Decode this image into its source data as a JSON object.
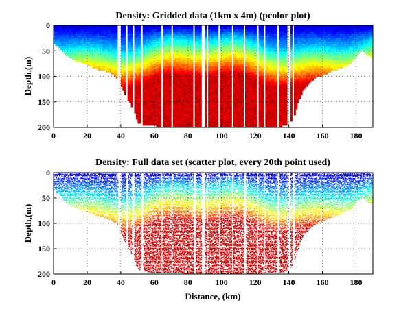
{
  "chart_data": [
    {
      "type": "heatmap",
      "title": "Density: Gridded data (1km x 4m) (pcolor plot)",
      "xlabel": "",
      "ylabel": "Depth,(m)",
      "xlim": [
        0,
        190
      ],
      "ylim": [
        200,
        0
      ],
      "xticks": [
        "0",
        "20",
        "40",
        "60",
        "80",
        "100",
        "120",
        "140",
        "160",
        "180"
      ],
      "yticks": [
        "0",
        "50",
        "100",
        "150",
        "200"
      ],
      "grid": true,
      "colormap": "jet",
      "description_values": {
        "surface_density": "low (blue)",
        "deep_density": "high (dark red)"
      }
    },
    {
      "type": "scatter",
      "title": "Density: Full data set (scatter plot, every 20th point used)",
      "xlabel": "Distance, (km)",
      "ylabel": "Depth,(m)",
      "xlim": [
        0,
        190
      ],
      "ylim": [
        200,
        0
      ],
      "xticks": [
        "0",
        "20",
        "40",
        "60",
        "80",
        "100",
        "120",
        "140",
        "160",
        "180"
      ],
      "yticks": [
        "0",
        "50",
        "100",
        "150",
        "200"
      ],
      "grid": true,
      "colormap": "jet"
    }
  ],
  "bathymetry_km_m": [
    [
      0,
      33
    ],
    [
      2,
      40
    ],
    [
      4,
      45
    ],
    [
      6,
      55
    ],
    [
      8,
      60
    ],
    [
      10,
      64
    ],
    [
      14,
      70
    ],
    [
      18,
      74
    ],
    [
      22,
      80
    ],
    [
      26,
      85
    ],
    [
      30,
      88
    ],
    [
      33,
      92
    ],
    [
      36,
      98
    ],
    [
      38,
      104
    ],
    [
      40,
      118
    ],
    [
      42,
      135
    ],
    [
      45,
      152
    ],
    [
      48,
      172
    ],
    [
      50,
      190
    ],
    [
      55,
      195
    ],
    [
      60,
      196
    ],
    [
      70,
      197
    ],
    [
      80,
      198
    ],
    [
      90,
      198
    ],
    [
      100,
      198
    ],
    [
      110,
      198
    ],
    [
      120,
      198
    ],
    [
      130,
      197
    ],
    [
      136,
      196
    ],
    [
      140,
      192
    ],
    [
      143,
      175
    ],
    [
      145,
      150
    ],
    [
      148,
      125
    ],
    [
      152,
      110
    ],
    [
      156,
      100
    ],
    [
      160,
      95
    ],
    [
      165,
      88
    ],
    [
      170,
      82
    ],
    [
      175,
      75
    ],
    [
      178,
      68
    ],
    [
      180,
      58
    ],
    [
      183,
      48
    ],
    [
      186,
      58
    ],
    [
      188,
      60
    ],
    [
      190,
      62
    ]
  ],
  "gaps_km": [
    [
      38,
      40
    ],
    [
      43,
      44
    ],
    [
      46.5,
      47.5
    ],
    [
      52,
      53
    ],
    [
      64,
      64.6
    ],
    [
      70,
      70.6
    ],
    [
      83,
      84
    ],
    [
      88,
      89.6
    ],
    [
      91,
      91.6
    ],
    [
      98,
      98.8
    ],
    [
      106,
      106.6
    ],
    [
      113,
      114
    ],
    [
      121,
      121.6
    ],
    [
      125,
      125.6
    ],
    [
      133,
      134
    ],
    [
      139,
      140.5
    ],
    [
      142,
      143
    ]
  ]
}
